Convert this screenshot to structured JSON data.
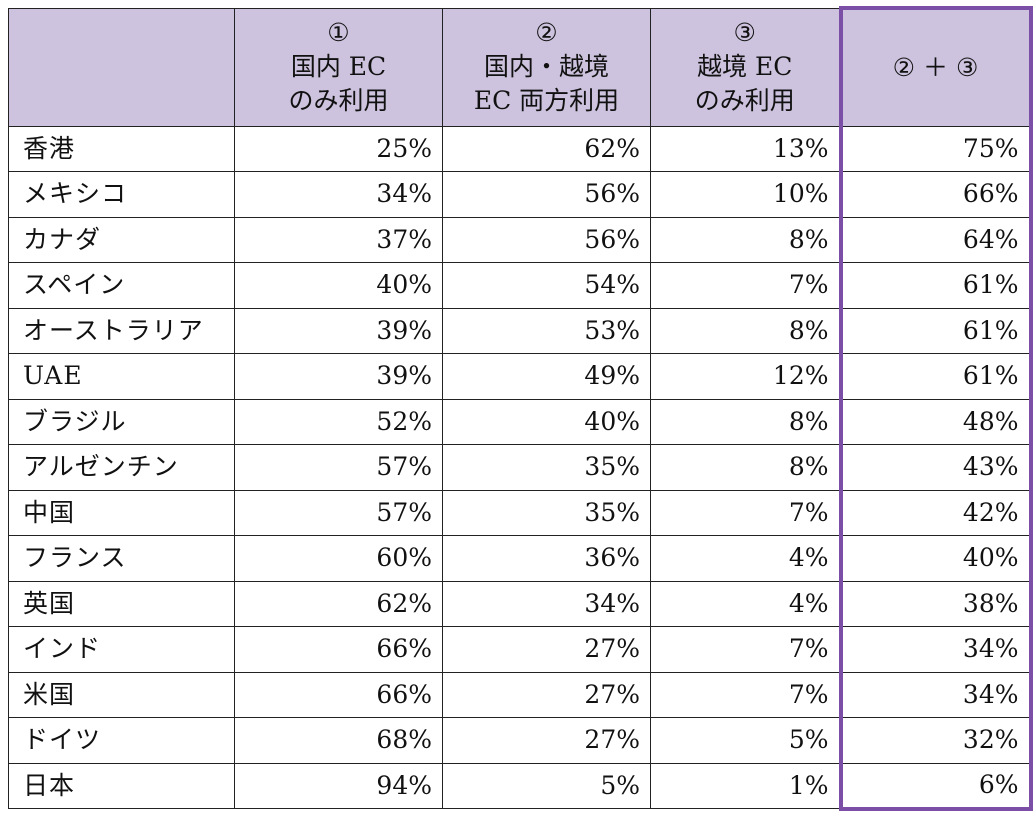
{
  "chart_data": {
    "type": "table",
    "columns": [
      {
        "key": "country",
        "lines": [
          ""
        ]
      },
      {
        "key": "domestic_only",
        "lines": [
          "①",
          "国内 EC",
          "のみ利用"
        ]
      },
      {
        "key": "both",
        "lines": [
          "②",
          "国内・越境",
          "EC 両方利用"
        ]
      },
      {
        "key": "crossborder_only",
        "lines": [
          "③",
          "越境 EC",
          "のみ利用"
        ]
      },
      {
        "key": "sum_2_3",
        "lines": [
          "② ＋ ③"
        ]
      }
    ],
    "rows": [
      {
        "country": "香港",
        "values": [
          "25%",
          "62%",
          "13%",
          "75%"
        ]
      },
      {
        "country": "メキシコ",
        "values": [
          "34%",
          "56%",
          "10%",
          "66%"
        ]
      },
      {
        "country": "カナダ",
        "values": [
          "37%",
          "56%",
          "8%",
          "64%"
        ]
      },
      {
        "country": "スペイン",
        "values": [
          "40%",
          "54%",
          "7%",
          "61%"
        ]
      },
      {
        "country": "オーストラリア",
        "values": [
          "39%",
          "53%",
          "8%",
          "61%"
        ]
      },
      {
        "country": "UAE",
        "values": [
          "39%",
          "49%",
          "12%",
          "61%"
        ]
      },
      {
        "country": "ブラジル",
        "values": [
          "52%",
          "40%",
          "8%",
          "48%"
        ]
      },
      {
        "country": "アルゼンチン",
        "values": [
          "57%",
          "35%",
          "8%",
          "43%"
        ]
      },
      {
        "country": "中国",
        "values": [
          "57%",
          "35%",
          "7%",
          "42%"
        ]
      },
      {
        "country": "フランス",
        "values": [
          "60%",
          "36%",
          "4%",
          "40%"
        ]
      },
      {
        "country": "英国",
        "values": [
          "62%",
          "34%",
          "4%",
          "38%"
        ]
      },
      {
        "country": "インド",
        "values": [
          "66%",
          "27%",
          "7%",
          "34%"
        ]
      },
      {
        "country": "米国",
        "values": [
          "66%",
          "27%",
          "7%",
          "34%"
        ]
      },
      {
        "country": "ドイツ",
        "values": [
          "68%",
          "27%",
          "5%",
          "32%"
        ]
      },
      {
        "country": "日本",
        "values": [
          "94%",
          "5%",
          "1%",
          "6%"
        ]
      }
    ],
    "colors": {
      "header_bg": "#cdc3de",
      "highlight_border": "#7b4fa6"
    }
  }
}
